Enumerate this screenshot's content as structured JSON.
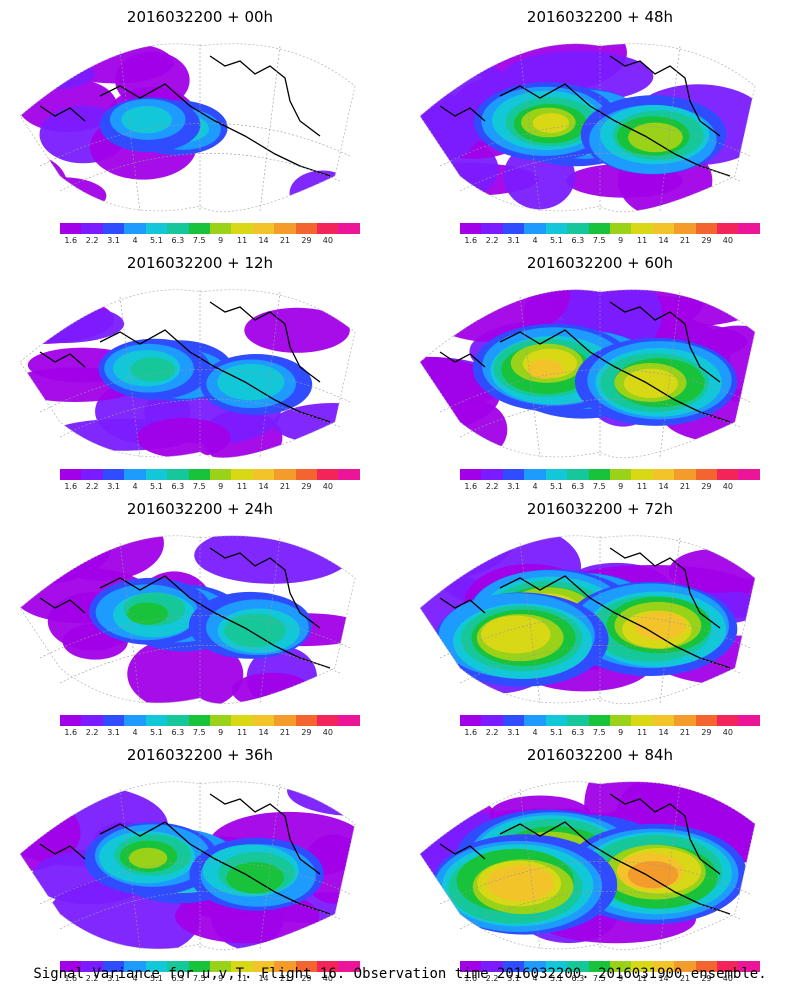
{
  "panels": [
    {
      "title": "2016032200 + 00h",
      "level": 0.15
    },
    {
      "title": "2016032200 + 48h",
      "level": 0.55
    },
    {
      "title": "2016032200 + 12h",
      "level": 0.25
    },
    {
      "title": "2016032200 + 60h",
      "level": 0.7
    },
    {
      "title": "2016032200 + 24h",
      "level": 0.35
    },
    {
      "title": "2016032200 + 72h",
      "level": 0.8
    },
    {
      "title": "2016032200 + 36h",
      "level": 0.45
    },
    {
      "title": "2016032200 + 84h",
      "level": 0.9
    }
  ],
  "colorbar": {
    "ticks": [
      "1.6",
      "2.2",
      "3.1",
      "4",
      "5.1",
      "6.3",
      "7.5",
      "9",
      "11",
      "14",
      "21",
      "29",
      "40"
    ],
    "colors": [
      "#a100e8",
      "#7a1cff",
      "#2f4dff",
      "#1e9bff",
      "#12c8d8",
      "#16c79a",
      "#18c23a",
      "#9ad21a",
      "#d8d817",
      "#f2c42a",
      "#f39b2b",
      "#f2652e",
      "#f2245a",
      "#ec1499"
    ]
  },
  "caption": "Signal Variance for u,v,T. Flight 16. Observation time 2016032200. 2016031900 ensemble."
}
